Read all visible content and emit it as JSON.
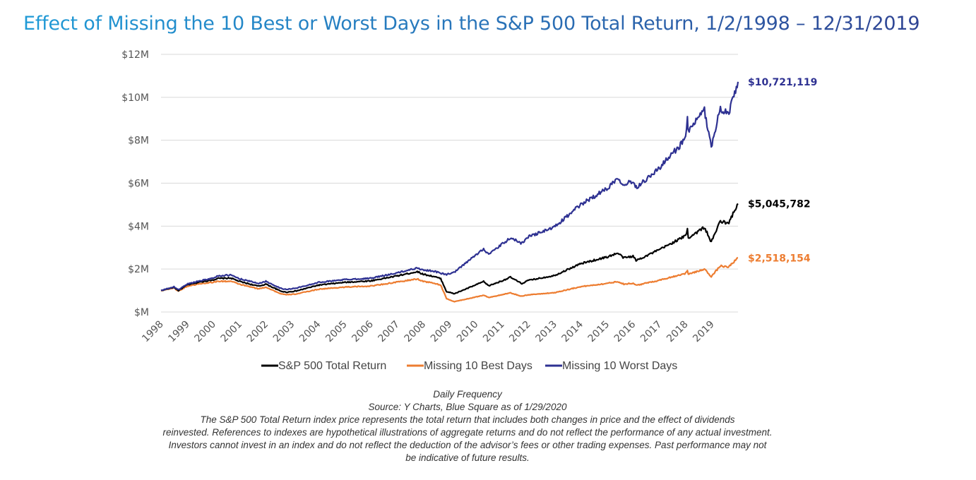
{
  "colors": {
    "title_start": "#1f9ad6",
    "title_end": "#2f3e8f",
    "sp500": "#000000",
    "missing_best": "#ed7d31",
    "missing_worst": "#2e3192",
    "grid": "#d9d9d9"
  },
  "chart_data": {
    "type": "line",
    "title": "Effect of Missing the 10 Best or Worst Days in the S&P 500 Total Return, 1/2/1998 – 12/31/2019",
    "xlabel": "",
    "ylabel": "",
    "x_range": [
      "1998-01-02",
      "2019-12-31"
    ],
    "ylim": [
      0,
      12000000
    ],
    "y_ticks": [
      {
        "value": 0,
        "label": "$M"
      },
      {
        "value": 2000000,
        "label": "$2M"
      },
      {
        "value": 4000000,
        "label": "$4M"
      },
      {
        "value": 6000000,
        "label": "$6M"
      },
      {
        "value": 8000000,
        "label": "$8M"
      },
      {
        "value": 10000000,
        "label": "$10M"
      },
      {
        "value": 12000000,
        "label": "$12M"
      }
    ],
    "x_ticks": [
      "1998",
      "1999",
      "2000",
      "2001",
      "2002",
      "2003",
      "2004",
      "2005",
      "2006",
      "2007",
      "2008",
      "2009",
      "2010",
      "2011",
      "2012",
      "2013",
      "2014",
      "2015",
      "2016",
      "2017",
      "2018",
      "2019"
    ],
    "grid": "horizontal",
    "legend_position": "bottom",
    "series": [
      {
        "name": "S&P 500 Total Return",
        "end_label": "$5,045,782",
        "color": "#000000",
        "points": [
          [
            "1998-01-02",
            1000000
          ],
          [
            "1998-07-01",
            1150000
          ],
          [
            "1998-09-01",
            1000000
          ],
          [
            "1999-01-01",
            1260000
          ],
          [
            "1999-07-01",
            1400000
          ],
          [
            "2000-01-01",
            1500000
          ],
          [
            "2000-03-01",
            1560000
          ],
          [
            "2000-09-01",
            1580000
          ],
          [
            "2001-01-01",
            1420000
          ],
          [
            "2001-09-20",
            1200000
          ],
          [
            "2002-01-01",
            1300000
          ],
          [
            "2002-07-20",
            980000
          ],
          [
            "2002-10-10",
            920000
          ],
          [
            "2003-03-01",
            980000
          ],
          [
            "2003-12-31",
            1250000
          ],
          [
            "2004-12-31",
            1380000
          ],
          [
            "2005-12-31",
            1450000
          ],
          [
            "2006-12-31",
            1680000
          ],
          [
            "2007-10-09",
            1880000
          ],
          [
            "2008-01-01",
            1760000
          ],
          [
            "2008-06-01",
            1650000
          ],
          [
            "2008-09-01",
            1550000
          ],
          [
            "2008-11-20",
            950000
          ],
          [
            "2009-03-09",
            850000
          ],
          [
            "2009-12-31",
            1260000
          ],
          [
            "2010-04-20",
            1420000
          ],
          [
            "2010-07-01",
            1220000
          ],
          [
            "2010-12-31",
            1450000
          ],
          [
            "2011-04-29",
            1620000
          ],
          [
            "2011-10-03",
            1320000
          ],
          [
            "2011-12-31",
            1470000
          ],
          [
            "2012-12-31",
            1700000
          ],
          [
            "2013-12-31",
            2250000
          ],
          [
            "2014-12-31",
            2560000
          ],
          [
            "2015-06-01",
            2740000
          ],
          [
            "2015-08-25",
            2520000
          ],
          [
            "2015-12-31",
            2600000
          ],
          [
            "2016-02-11",
            2400000
          ],
          [
            "2016-12-31",
            2900000
          ],
          [
            "2017-12-31",
            3550000
          ],
          [
            "2018-01-26",
            3850000
          ],
          [
            "2018-02-08",
            3450000
          ],
          [
            "2018-09-20",
            3950000
          ],
          [
            "2018-12-24",
            3250000
          ],
          [
            "2019-04-30",
            4250000
          ],
          [
            "2019-08-15",
            4100000
          ],
          [
            "2019-12-31",
            5045782
          ]
        ]
      },
      {
        "name": "Missing 10 Best Days",
        "end_label": "$2,518,154",
        "color": "#ed7d31",
        "points": [
          [
            "1998-01-02",
            1000000
          ],
          [
            "1998-07-01",
            1120000
          ],
          [
            "1998-09-01",
            970000
          ],
          [
            "1999-01-01",
            1200000
          ],
          [
            "1999-07-01",
            1320000
          ],
          [
            "2000-01-01",
            1390000
          ],
          [
            "2000-03-01",
            1430000
          ],
          [
            "2000-09-01",
            1430000
          ],
          [
            "2001-01-01",
            1290000
          ],
          [
            "2001-09-20",
            1080000
          ],
          [
            "2002-01-01",
            1160000
          ],
          [
            "2002-07-20",
            860000
          ],
          [
            "2002-10-10",
            800000
          ],
          [
            "2003-03-01",
            840000
          ],
          [
            "2003-12-31",
            1060000
          ],
          [
            "2004-12-31",
            1160000
          ],
          [
            "2005-12-31",
            1210000
          ],
          [
            "2006-12-31",
            1390000
          ],
          [
            "2007-10-09",
            1540000
          ],
          [
            "2008-01-01",
            1430000
          ],
          [
            "2008-06-01",
            1340000
          ],
          [
            "2008-09-01",
            1250000
          ],
          [
            "2008-11-20",
            620000
          ],
          [
            "2009-03-09",
            480000
          ],
          [
            "2009-12-31",
            700000
          ],
          [
            "2010-04-20",
            780000
          ],
          [
            "2010-07-01",
            680000
          ],
          [
            "2010-12-31",
            800000
          ],
          [
            "2011-04-29",
            890000
          ],
          [
            "2011-10-03",
            730000
          ],
          [
            "2011-12-31",
            800000
          ],
          [
            "2012-12-31",
            900000
          ],
          [
            "2013-12-31",
            1180000
          ],
          [
            "2014-12-31",
            1330000
          ],
          [
            "2015-06-01",
            1420000
          ],
          [
            "2015-08-25",
            1300000
          ],
          [
            "2015-12-31",
            1340000
          ],
          [
            "2016-02-11",
            1240000
          ],
          [
            "2016-12-31",
            1480000
          ],
          [
            "2017-12-31",
            1800000
          ],
          [
            "2018-01-26",
            1950000
          ],
          [
            "2018-02-08",
            1750000
          ],
          [
            "2018-09-20",
            2000000
          ],
          [
            "2018-12-24",
            1650000
          ],
          [
            "2019-04-30",
            2150000
          ],
          [
            "2019-08-15",
            2080000
          ],
          [
            "2019-12-31",
            2518154
          ]
        ]
      },
      {
        "name": "Missing 10 Worst Days",
        "end_label": "$10,721,119",
        "color": "#2e3192",
        "points": [
          [
            "1998-01-02",
            1000000
          ],
          [
            "1998-07-01",
            1170000
          ],
          [
            "1998-09-01",
            1040000
          ],
          [
            "1999-01-01",
            1300000
          ],
          [
            "1999-07-01",
            1460000
          ],
          [
            "2000-01-01",
            1580000
          ],
          [
            "2000-03-01",
            1680000
          ],
          [
            "2000-09-01",
            1720000
          ],
          [
            "2001-01-01",
            1550000
          ],
          [
            "2001-09-20",
            1330000
          ],
          [
            "2002-01-01",
            1430000
          ],
          [
            "2002-07-20",
            1110000
          ],
          [
            "2002-10-10",
            1050000
          ],
          [
            "2003-03-01",
            1110000
          ],
          [
            "2003-12-31",
            1380000
          ],
          [
            "2004-12-31",
            1510000
          ],
          [
            "2005-12-31",
            1570000
          ],
          [
            "2006-12-31",
            1820000
          ],
          [
            "2007-10-09",
            2050000
          ],
          [
            "2008-01-01",
            1960000
          ],
          [
            "2008-06-01",
            1900000
          ],
          [
            "2008-09-01",
            1800000
          ],
          [
            "2008-11-20",
            1750000
          ],
          [
            "2009-03-09",
            1850000
          ],
          [
            "2009-12-31",
            2650000
          ],
          [
            "2010-04-20",
            2950000
          ],
          [
            "2010-07-01",
            2680000
          ],
          [
            "2010-12-31",
            3150000
          ],
          [
            "2011-04-29",
            3450000
          ],
          [
            "2011-10-03",
            3200000
          ],
          [
            "2011-12-31",
            3500000
          ],
          [
            "2012-12-31",
            3950000
          ],
          [
            "2013-12-31",
            5000000
          ],
          [
            "2014-12-31",
            5750000
          ],
          [
            "2015-06-01",
            6250000
          ],
          [
            "2015-08-25",
            5950000
          ],
          [
            "2015-12-31",
            6100000
          ],
          [
            "2016-02-11",
            5800000
          ],
          [
            "2016-12-31",
            6700000
          ],
          [
            "2017-12-31",
            8050000
          ],
          [
            "2018-01-26",
            9000000
          ],
          [
            "2018-02-08",
            8400000
          ],
          [
            "2018-09-20",
            9400000
          ],
          [
            "2018-12-24",
            7700000
          ],
          [
            "2019-04-30",
            9500000
          ],
          [
            "2019-08-15",
            9200000
          ],
          [
            "2019-12-31",
            10721119
          ]
        ]
      }
    ]
  },
  "footnote": {
    "line1": "Daily Frequency",
    "line2": "Source: Y Charts, Blue Square as of 1/29/2020",
    "line3": "The S&P 500 Total Return index price represents the total return that includes both changes in price and the effect of dividends",
    "line4": "reinvested. References to indexes are hypothetical illustrations of aggregate returns and do not reflect the performance of any actual investment.",
    "line5": "Investors cannot invest in an index and do not reflect the deduction of the advisor’s fees or other trading expenses.  Past performance may not",
    "line6": "be indicative of future results."
  }
}
